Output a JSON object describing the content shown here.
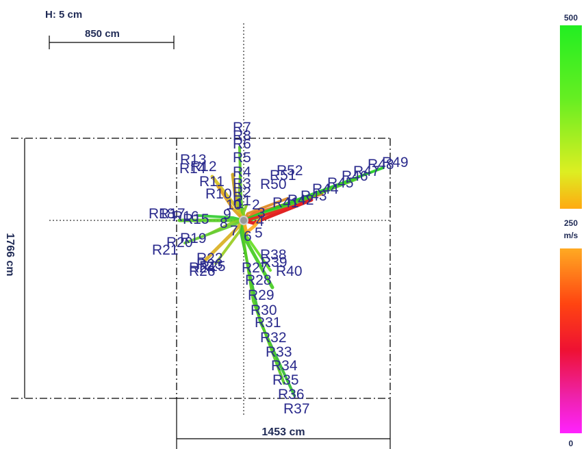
{
  "header": {
    "h_label": "H: 5 cm",
    "scale_bar_label": "850 cm"
  },
  "dimensions": {
    "width_label": "1453 cm",
    "height_label": "1766 cm"
  },
  "colorbar": {
    "top_label": "500",
    "mid_label": "250",
    "unit_label": "m/s",
    "bottom_label": "0",
    "upper_gradient": [
      "#22ee22",
      "#66ee22",
      "#ddee22",
      "#ffaa11"
    ],
    "lower_gradient": [
      "#ffaa22",
      "#ff4411",
      "#ee1133",
      "#ee22aa",
      "#ff22ff"
    ]
  },
  "center_labels": [
    "10",
    "1",
    "2",
    "3",
    "4",
    "5",
    "6",
    "7",
    "8",
    "9"
  ],
  "root_labels": [
    "R7",
    "R8",
    "R6",
    "R5",
    "R4",
    "R3",
    "R2",
    "R1",
    "R13",
    "R12",
    "R14",
    "R11",
    "R10",
    "R52",
    "R51",
    "R50",
    "R48",
    "R49",
    "R47",
    "R46",
    "R45",
    "R44",
    "R43",
    "R42",
    "R41",
    "R18",
    "R17",
    "R16",
    "R15",
    "R19",
    "R20",
    "R21",
    "R22",
    "R23",
    "R24",
    "R25",
    "R26",
    "R27",
    "R38",
    "R39",
    "R40",
    "R28",
    "R29",
    "R30",
    "R31",
    "R32",
    "R33",
    "R34",
    "R35",
    "R36",
    "R37"
  ]
}
